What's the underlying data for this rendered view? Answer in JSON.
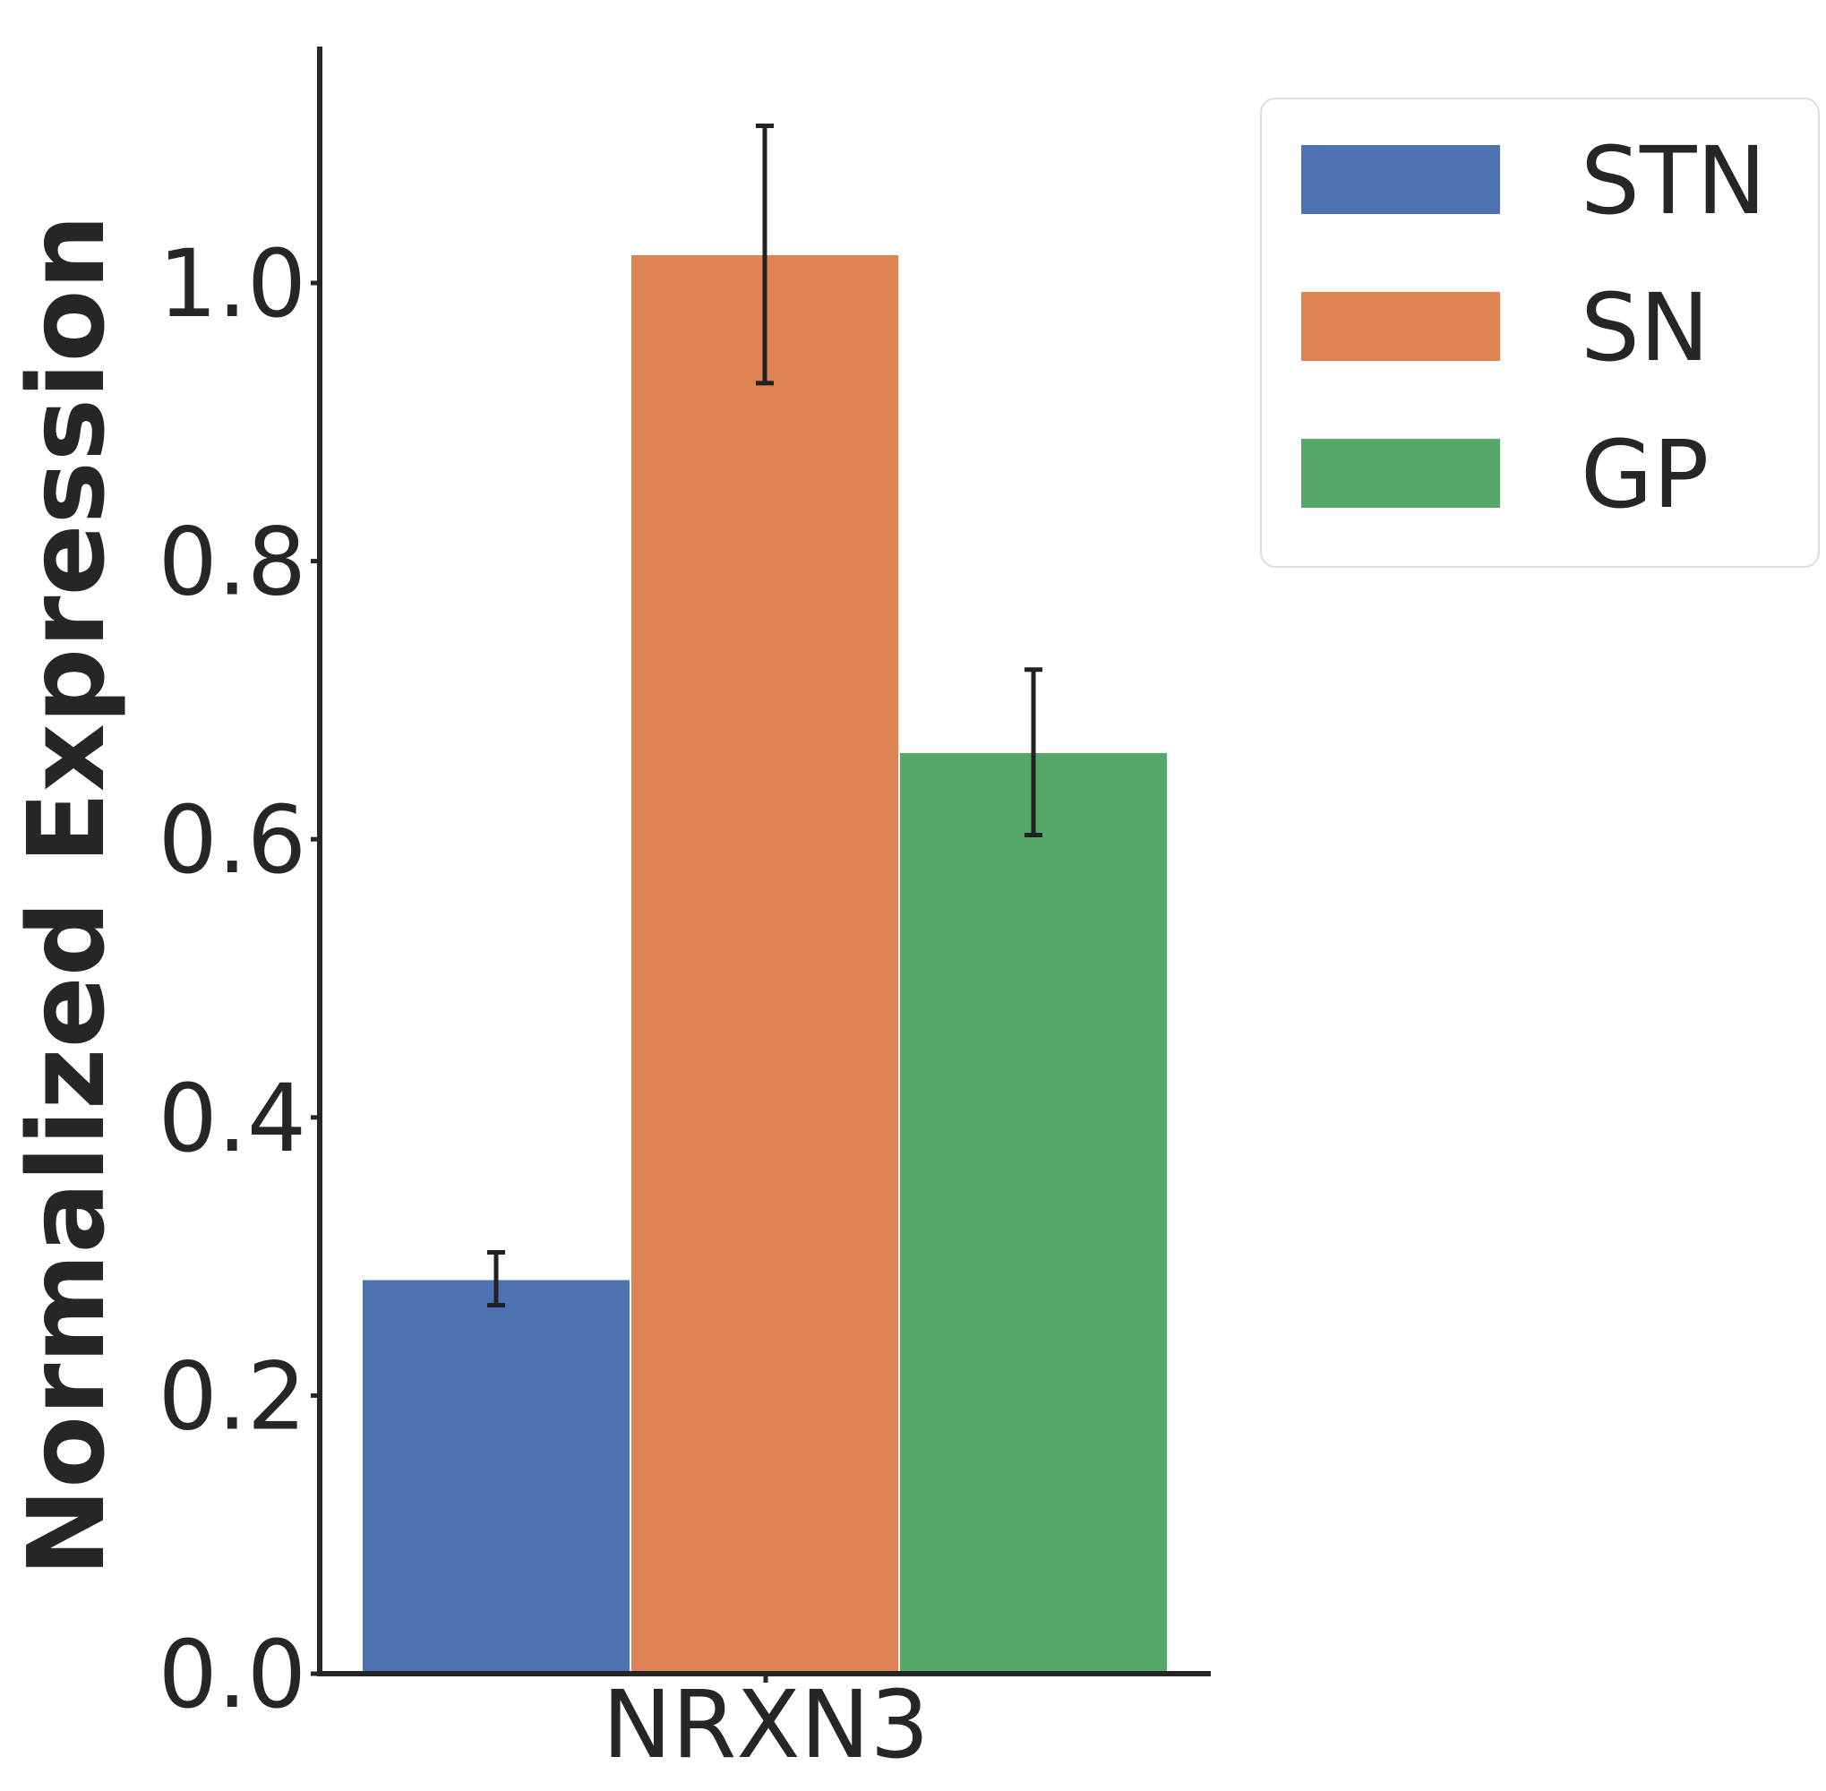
{
  "chart_data": {
    "type": "bar",
    "categories": [
      "NRXN3"
    ],
    "series": [
      {
        "name": "STN",
        "values": [
          0.283
        ],
        "error": [
          [
            0.265,
            0.303
          ]
        ],
        "color": "#4c72b0"
      },
      {
        "name": "SN",
        "values": [
          1.02
        ],
        "error": [
          [
            0.928,
            1.113
          ]
        ],
        "color": "#dd8452"
      },
      {
        "name": "GP",
        "values": [
          0.662
        ],
        "error": [
          [
            0.603,
            0.722
          ]
        ],
        "color": "#55a868"
      }
    ],
    "title": "",
    "xlabel": "",
    "ylabel": "Normalized Expression",
    "ylim": [
      0,
      1.17
    ],
    "yticks": [
      "0.0",
      "0.2",
      "0.4",
      "0.6",
      "0.8",
      "1.0"
    ],
    "grid": false,
    "legend": "top-right, outside plot"
  }
}
